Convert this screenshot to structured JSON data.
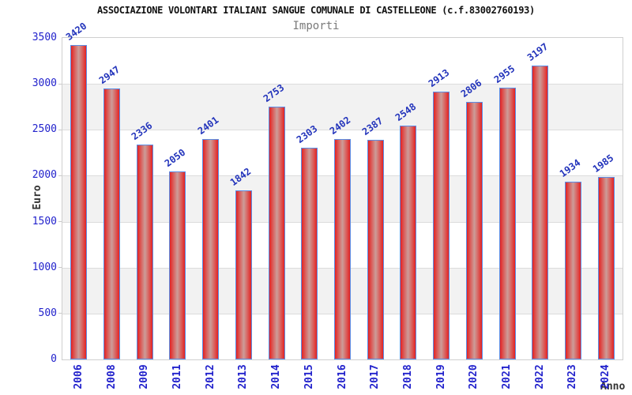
{
  "chart_data": {
    "type": "bar",
    "title": "ASSOCIAZIONE VOLONTARI ITALIANI SANGUE COMUNALE DI CASTELLEONE (c.f.83002760193)",
    "subtitle": "Importi",
    "xlabel": "Anno",
    "ylabel": "Euro",
    "categories": [
      "2006",
      "2008",
      "2009",
      "2011",
      "2012",
      "2013",
      "2014",
      "2015",
      "2016",
      "2017",
      "2018",
      "2019",
      "2020",
      "2021",
      "2022",
      "2023",
      "2024"
    ],
    "values": [
      3420,
      2947,
      2336,
      2050,
      2401,
      1842,
      2753,
      2303,
      2402,
      2387,
      2548,
      2913,
      2806,
      2955,
      3197,
      1934,
      1985
    ],
    "ylim": [
      0,
      3500
    ],
    "ytick_step": 500,
    "ytick_labels": [
      "0",
      "500",
      "1000",
      "1500",
      "2000",
      "2500",
      "3000",
      "3500"
    ],
    "grid": "horizontal-gridlines-with-alternating-bands",
    "legend_position": "none",
    "colors": {
      "bar_fill_edge": "#e32222",
      "bar_fill_center": "#cc9d99",
      "bar_border": "#5b8ee6",
      "value_label": "#2233bb",
      "tick_label": "#2222cc",
      "axis_title": "#333333",
      "subtitle": "#7a7a7a",
      "title": "#111111",
      "band": "#f2f2f2",
      "gridline": "#dcdcdc",
      "plot_border": "#cfcfcf",
      "background": "#ffffff"
    }
  }
}
